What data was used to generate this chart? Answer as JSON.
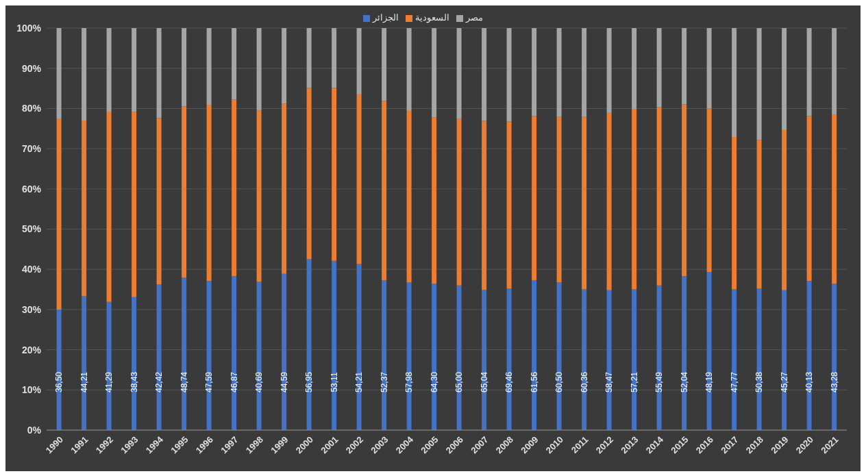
{
  "chart_data": {
    "type": "bar",
    "stacked": true,
    "categories": [
      "1990",
      "1991",
      "1992",
      "1993",
      "1994",
      "1995",
      "1996",
      "1997",
      "1998",
      "1999",
      "2000",
      "2001",
      "2002",
      "2003",
      "2004",
      "2005",
      "2006",
      "2007",
      "2008",
      "2009",
      "2010",
      "2011",
      "2012",
      "2013",
      "2014",
      "2015",
      "2016",
      "2017",
      "2018",
      "2019",
      "2020",
      "2021"
    ],
    "series": [
      {
        "name": "الجزائر",
        "color": "#4472c4",
        "values": [
          30,
          33.3,
          31.9,
          33.1,
          36.2,
          37.9,
          37.1,
          38.3,
          36.9,
          38.9,
          42.5,
          42.1,
          41.3,
          37.3,
          36.7,
          36.4,
          36.0,
          34.9,
          35.2,
          37.3,
          36.7,
          35.0,
          34.8,
          35.0,
          36.0,
          38.3,
          39.3,
          35.0,
          35.2,
          34.8,
          37.1,
          36.4
        ]
      },
      {
        "name": "السعودية",
        "color": "#ed7d31",
        "values": [
          47.5,
          43.7,
          47.3,
          46.0,
          41.4,
          42.6,
          43.8,
          43.9,
          42.6,
          42.3,
          42.6,
          43.0,
          42.2,
          44.6,
          42.7,
          41.4,
          41.4,
          42.0,
          41.6,
          40.8,
          41.2,
          42.9,
          44.1,
          44.9,
          44.3,
          42.7,
          40.7,
          37.9,
          37.0,
          40.0,
          41.0,
          42.0
        ]
      },
      {
        "name": "مصر",
        "color": "#a5a5a5",
        "values": [
          22.5,
          23.0,
          20.8,
          20.9,
          22.4,
          19.5,
          19.1,
          17.8,
          20.5,
          18.8,
          14.9,
          14.9,
          16.5,
          18.1,
          20.6,
          22.2,
          22.6,
          23.1,
          23.2,
          21.9,
          22.1,
          22.1,
          21.1,
          20.1,
          19.7,
          19.0,
          20.0,
          27.1,
          27.8,
          25.2,
          21.9,
          21.6
        ]
      }
    ],
    "annotations": [
      {
        "text": "36,50",
        "x": "1990"
      },
      {
        "text": "44,21",
        "x": "1991"
      },
      {
        "text": "41,29",
        "x": "1992"
      },
      {
        "text": "38,43",
        "x": "1993"
      },
      {
        "text": "42,42",
        "x": "1994"
      },
      {
        "text": "48,74",
        "x": "1995"
      },
      {
        "text": "47,59",
        "x": "1996"
      },
      {
        "text": "46,87",
        "x": "1997"
      },
      {
        "text": "40,69",
        "x": "1998"
      },
      {
        "text": "44,59",
        "x": "1999"
      },
      {
        "text": "56,95",
        "x": "2000"
      },
      {
        "text": "53,11",
        "x": "2001"
      },
      {
        "text": "54,21",
        "x": "2002"
      },
      {
        "text": "52,37",
        "x": "2003"
      },
      {
        "text": "57,98",
        "x": "2004"
      },
      {
        "text": "64,30",
        "x": "2005"
      },
      {
        "text": "65,00",
        "x": "2006"
      },
      {
        "text": "65,04",
        "x": "2007"
      },
      {
        "text": "69,46",
        "x": "2008"
      },
      {
        "text": "61,56",
        "x": "2009"
      },
      {
        "text": "60,50",
        "x": "2010"
      },
      {
        "text": "60,36",
        "x": "2011"
      },
      {
        "text": "58,47",
        "x": "2012"
      },
      {
        "text": "57,21",
        "x": "2013"
      },
      {
        "text": "55,49",
        "x": "2014"
      },
      {
        "text": "52,04",
        "x": "2015"
      },
      {
        "text": "48,19",
        "x": "2016"
      },
      {
        "text": "47,77",
        "x": "2017"
      },
      {
        "text": "50,38",
        "x": "2018"
      },
      {
        "text": "45,27",
        "x": "2019"
      },
      {
        "text": "40,13",
        "x": "2020"
      },
      {
        "text": "43,28",
        "x": "2021"
      }
    ],
    "ylim": [
      0,
      100
    ],
    "yticks": [
      {
        "value": 0,
        "label": "0%"
      },
      {
        "value": 10,
        "label": "10%"
      },
      {
        "value": 20,
        "label": "20%"
      },
      {
        "value": 30,
        "label": "30%"
      },
      {
        "value": 40,
        "label": "40%"
      },
      {
        "value": 50,
        "label": "50%"
      },
      {
        "value": 60,
        "label": "60%"
      },
      {
        "value": 70,
        "label": "70%"
      },
      {
        "value": 80,
        "label": "80%"
      },
      {
        "value": 90,
        "label": "90%"
      },
      {
        "value": 100,
        "label": "100%"
      }
    ],
    "grid": "y",
    "legend": "top"
  }
}
